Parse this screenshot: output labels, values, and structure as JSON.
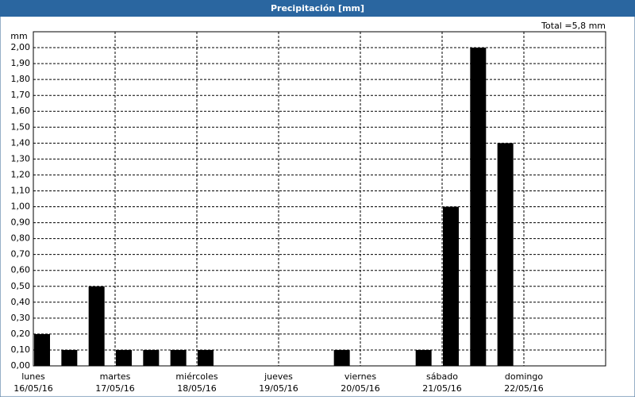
{
  "chart_data": {
    "type": "bar",
    "title": "Precipitación [mm]",
    "total_label": "Total =5,8 mm",
    "y_unit": "mm",
    "x_labels": [
      {
        "day": "lunes",
        "date": "16/05/16"
      },
      {
        "day": "martes",
        "date": "17/05/16"
      },
      {
        "day": "miércoles",
        "date": "18/05/16"
      },
      {
        "day": "jueves",
        "date": "19/05/16"
      },
      {
        "day": "viernes",
        "date": "20/05/16"
      },
      {
        "day": "sábado",
        "date": "21/05/16"
      },
      {
        "day": "domingo",
        "date": "22/05/16"
      }
    ],
    "values": [
      0.2,
      0.1,
      0.5,
      0.1,
      0.1,
      0.1,
      0.1,
      0,
      0,
      0,
      0,
      0.1,
      0,
      0,
      0.1,
      1.0,
      2.0,
      1.4,
      0,
      0,
      0
    ],
    "color": "#000000",
    "ylim": [
      0,
      2.1
    ],
    "yticks": [
      {
        "value": 0,
        "label": "0,00"
      },
      {
        "value": 0.1,
        "label": "0,10"
      },
      {
        "value": 0.2,
        "label": "0,20"
      },
      {
        "value": 0.3,
        "label": "0,30"
      },
      {
        "value": 0.4,
        "label": "0,40"
      },
      {
        "value": 0.5,
        "label": "0,50"
      },
      {
        "value": 0.6,
        "label": "0,60"
      },
      {
        "value": 0.7,
        "label": "0,70"
      },
      {
        "value": 0.8,
        "label": "0,80"
      },
      {
        "value": 0.9,
        "label": "0,90"
      },
      {
        "value": 1.0,
        "label": "1,00"
      },
      {
        "value": 1.1,
        "label": "1,10"
      },
      {
        "value": 1.2,
        "label": "1,20"
      },
      {
        "value": 1.3,
        "label": "1,30"
      },
      {
        "value": 1.4,
        "label": "1,40"
      },
      {
        "value": 1.5,
        "label": "1,50"
      },
      {
        "value": 1.6,
        "label": "1,60"
      },
      {
        "value": 1.7,
        "label": "1,70"
      },
      {
        "value": 1.8,
        "label": "1,80"
      },
      {
        "value": 1.9,
        "label": "1,90"
      },
      {
        "value": 2.0,
        "label": "2,00"
      }
    ],
    "grid": true
  }
}
